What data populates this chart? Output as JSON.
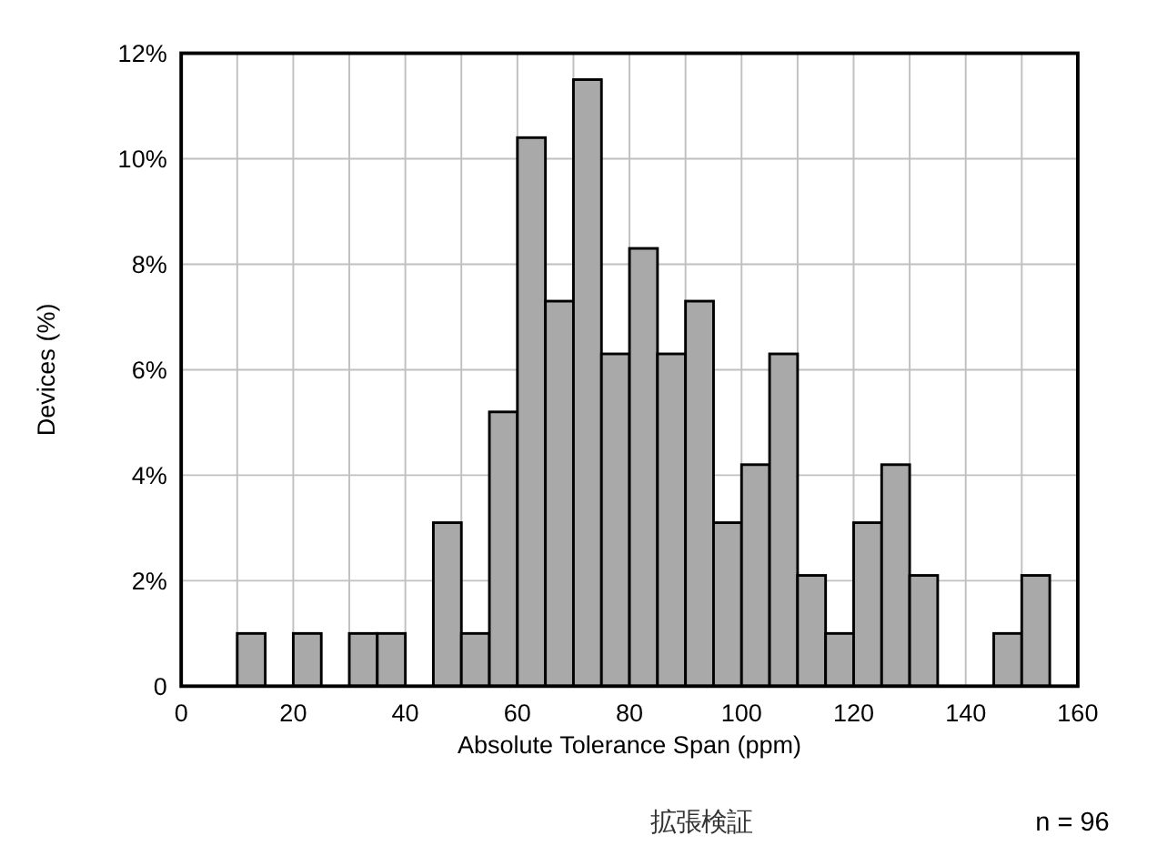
{
  "chart_data": {
    "type": "histogram",
    "xlabel": "Absolute Tolerance Span (ppm)",
    "ylabel": "Devices (%)",
    "bins": [
      10,
      15,
      20,
      25,
      30,
      35,
      40,
      45,
      50,
      55,
      60,
      65,
      70,
      75,
      80,
      85,
      90,
      95,
      100,
      105,
      110,
      115,
      120,
      125,
      130,
      135,
      140,
      145,
      150,
      155
    ],
    "values": [
      1.0,
      0,
      1.0,
      0,
      1.0,
      1.0,
      0,
      3.1,
      1.0,
      5.2,
      10.4,
      7.3,
      11.5,
      6.3,
      8.3,
      6.3,
      7.3,
      3.1,
      4.2,
      6.3,
      2.1,
      1.0,
      3.1,
      4.2,
      2.1,
      0,
      0,
      1.0,
      2.1
    ],
    "color": "#a9a9a9",
    "xlim": [
      0,
      160
    ],
    "xticks": [
      0,
      {
        "value": 10,
        "label": null
      },
      20,
      {
        "value": 30,
        "label": null
      },
      40,
      {
        "value": 50,
        "label": null
      },
      60,
      {
        "value": 70,
        "label": null
      },
      80,
      {
        "value": 90,
        "label": null
      },
      100,
      {
        "value": 110,
        "label": null
      },
      120,
      {
        "value": 130,
        "label": null
      },
      140,
      {
        "value": 150,
        "label": null
      },
      160
    ],
    "ylim": [
      0,
      12
    ],
    "yticks": [
      0,
      {
        "value": 2,
        "label": "2%"
      },
      {
        "value": 4,
        "label": "4%"
      },
      {
        "value": 6,
        "label": "6%"
      },
      {
        "value": 8,
        "label": "8%"
      },
      {
        "value": 10,
        "label": "10%"
      },
      {
        "value": 12,
        "label": "12%"
      }
    ],
    "grid": true,
    "annotations": [
      "拡張検証",
      "n = 96"
    ]
  }
}
